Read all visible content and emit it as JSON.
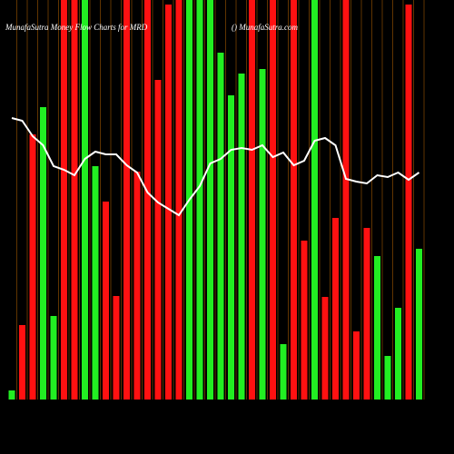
{
  "chart_data": {
    "type": "bar",
    "title": "MunafaSutra Money Flow Charts for MRD",
    "subtitle": "() MunafaSutra.com",
    "categories": [
      null,
      null,
      null,
      null,
      null,
      null,
      null,
      null,
      null,
      null,
      null,
      null,
      null,
      null,
      null,
      null,
      null,
      null,
      null,
      null,
      null,
      null,
      null,
      null,
      null,
      null,
      null,
      null,
      null,
      null,
      null,
      null,
      null,
      null,
      null,
      null,
      null,
      null,
      null,
      null
    ],
    "series": [
      {
        "color": "bars",
        "values": [
          10,
          82,
          292,
          322,
          92,
          440,
          440,
          440,
          257,
          218,
          114,
          440,
          251,
          440,
          352,
          435,
          440,
          440,
          440,
          440,
          382,
          335,
          359,
          440,
          364,
          440,
          61,
          440,
          175,
          440,
          113,
          200,
          440,
          75,
          189,
          158,
          48,
          101,
          435,
          166
        ],
        "colors": [
          "#22ee22",
          "#ff1111",
          "#ff1111",
          "#22ee22",
          "#22ee22",
          "#ff1111",
          "#ff1111",
          "#22ee22",
          "#22ee22",
          "#ff1111",
          "#ff1111",
          "#ff1111",
          "#ff1111",
          "#ff1111",
          "#ff1111",
          "#ff1111",
          "#ff1111",
          "#22ee22",
          "#22ee22",
          "#22ee22",
          "#22ee22",
          "#22ee22",
          "#22ee22",
          "#ff1111",
          "#22ee22",
          "#ff1111",
          "#22ee22",
          "#ff1111",
          "#ff1111",
          "#22ee22",
          "#ff1111",
          "#ff1111",
          "#ff1111",
          "#ff1111",
          "#ff1111",
          "#22ee22",
          "#22ee22",
          "#22ee22",
          "#ff1111",
          "#22ee22"
        ]
      },
      {
        "color": "#ffffff",
        "type": "line",
        "values": [
          310,
          307,
          290,
          280,
          257,
          253,
          247,
          265,
          273,
          270,
          270,
          258,
          250,
          228,
          217,
          210,
          203,
          220,
          235,
          260,
          265,
          275,
          277,
          275,
          280,
          267,
          272,
          258,
          263,
          285,
          288,
          280,
          243,
          240,
          238,
          247,
          245,
          250,
          242,
          250
        ]
      }
    ],
    "ylim": [
      0,
      440
    ]
  }
}
